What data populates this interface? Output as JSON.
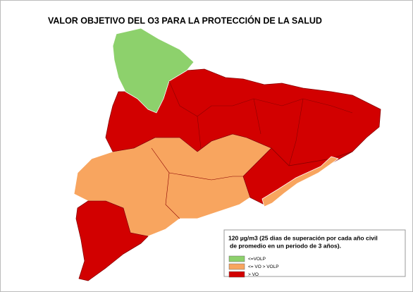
{
  "title": "VALOR OBJETIVO DEL O3 PARA LA PROTECCIÓN DE LA SALUD",
  "legend": {
    "lines": [
      "120 µg/m3 (25 dias de superación por cada año civil",
      "de promedio en un periodo de 3 años)."
    ],
    "items": [
      {
        "label": "<=VOLP",
        "color": "#8dd16c"
      },
      {
        "label": "<= VO > VOLP",
        "color": "#f8a55f"
      },
      {
        "label": "> VO",
        "color": "#d20000"
      }
    ]
  }
}
